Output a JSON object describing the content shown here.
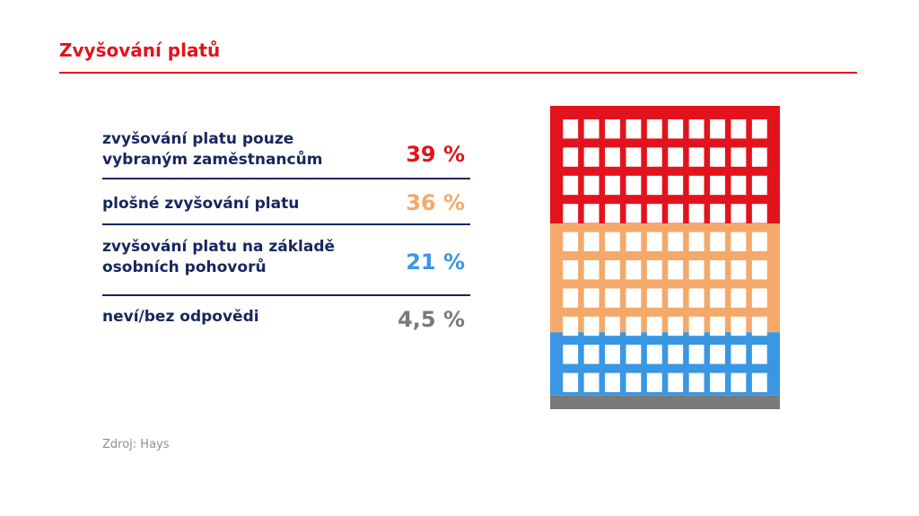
{
  "title": "Zvyšování platů",
  "source": "Zdroj: Hays",
  "chart_data": {
    "type": "waffle",
    "title": "Zvyšování platů",
    "grid": {
      "rows": 10,
      "cols": 10
    },
    "series": [
      {
        "label_lines": [
          "zvyšování platu pouze",
          "vybraným zaměstnancům"
        ],
        "value": 39,
        "display": "39 %",
        "color": "#e2131c"
      },
      {
        "label_lines": [
          "plošné zvyšování platu"
        ],
        "value": 36,
        "display": "36 %",
        "color": "#f4a96b"
      },
      {
        "label_lines": [
          "zvyšování platu na základě",
          "osobních pohovorů"
        ],
        "value": 21,
        "display": "21 %",
        "color": "#3a97e3"
      },
      {
        "label_lines": [
          "neví/bez odpovědi"
        ],
        "value": 4.5,
        "display": "4,5 %",
        "color": "#7a7a7a"
      }
    ]
  }
}
